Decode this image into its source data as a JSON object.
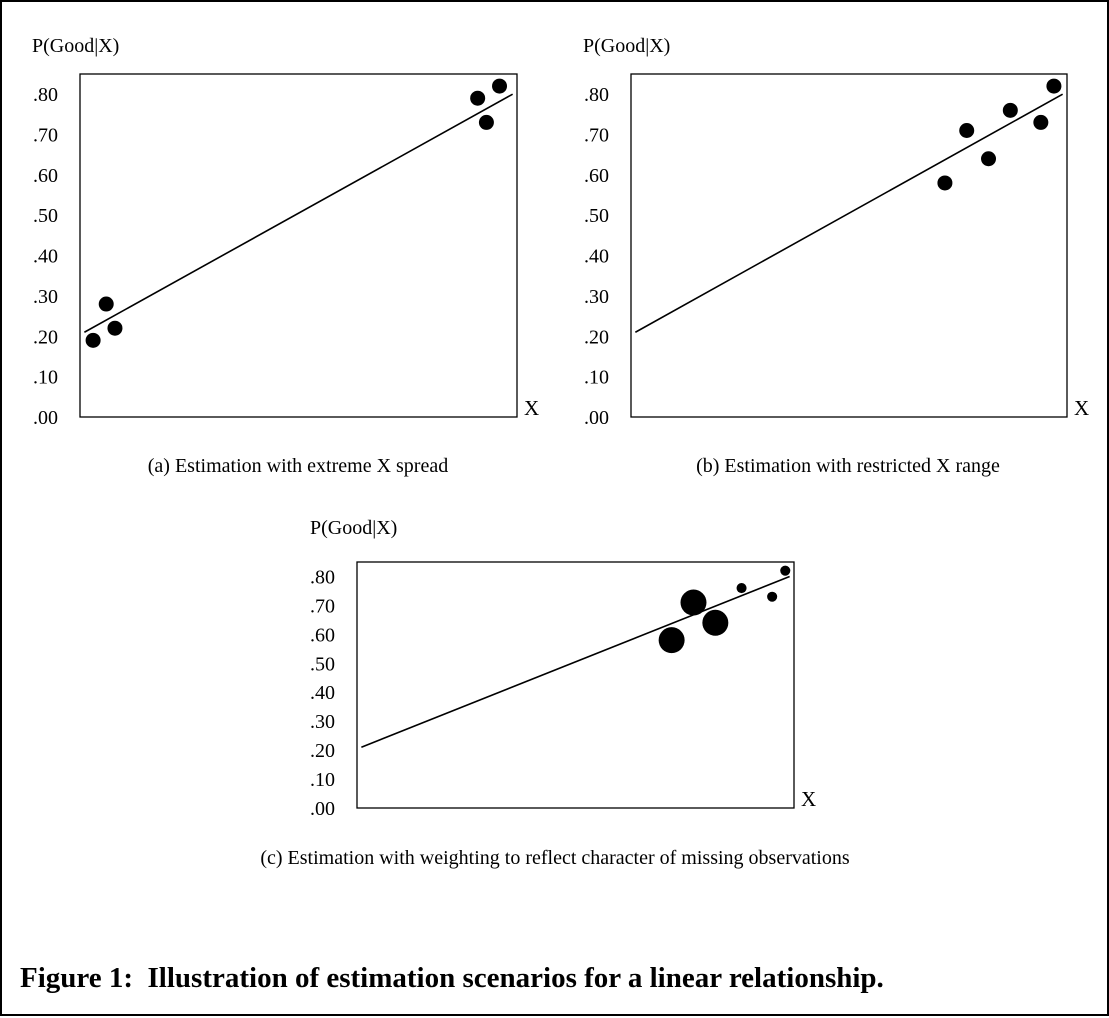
{
  "figure_caption": "Figure 1:  Illustration of estimation scenarios for a linear relationship.",
  "chart_data": [
    {
      "type": "scatter",
      "caption": "(a) Estimation with extreme X spread",
      "ylabel": "P(Good|X)",
      "xlabel": "X",
      "ylim": [
        0,
        0.85
      ],
      "xlim": [
        0,
        1
      ],
      "yticks": [
        ".00",
        ".10",
        ".20",
        ".30",
        ".40",
        ".50",
        ".60",
        ".70",
        ".80"
      ],
      "ytick_values": [
        0,
        0.1,
        0.2,
        0.3,
        0.4,
        0.5,
        0.6,
        0.7,
        0.8
      ],
      "grid": false,
      "fit_line": {
        "x": [
          0.01,
          0.99
        ],
        "y": [
          0.21,
          0.8
        ]
      },
      "points": [
        {
          "x": 0.03,
          "y": 0.19,
          "weight": 1
        },
        {
          "x": 0.06,
          "y": 0.28,
          "weight": 1
        },
        {
          "x": 0.08,
          "y": 0.22,
          "weight": 1
        },
        {
          "x": 0.91,
          "y": 0.79,
          "weight": 1
        },
        {
          "x": 0.93,
          "y": 0.73,
          "weight": 1
        },
        {
          "x": 0.96,
          "y": 0.82,
          "weight": 1
        }
      ]
    },
    {
      "type": "scatter",
      "caption": "(b) Estimation with restricted X range",
      "ylabel": "P(Good|X)",
      "xlabel": "X",
      "ylim": [
        0,
        0.85
      ],
      "xlim": [
        0,
        1
      ],
      "yticks": [
        ".00",
        ".10",
        ".20",
        ".30",
        ".40",
        ".50",
        ".60",
        ".70",
        ".80"
      ],
      "ytick_values": [
        0,
        0.1,
        0.2,
        0.3,
        0.4,
        0.5,
        0.6,
        0.7,
        0.8
      ],
      "grid": false,
      "fit_line": {
        "x": [
          0.01,
          0.99
        ],
        "y": [
          0.21,
          0.8
        ]
      },
      "points": [
        {
          "x": 0.72,
          "y": 0.58,
          "weight": 1
        },
        {
          "x": 0.77,
          "y": 0.71,
          "weight": 1
        },
        {
          "x": 0.82,
          "y": 0.64,
          "weight": 1
        },
        {
          "x": 0.87,
          "y": 0.76,
          "weight": 1
        },
        {
          "x": 0.94,
          "y": 0.73,
          "weight": 1
        },
        {
          "x": 0.97,
          "y": 0.82,
          "weight": 1
        }
      ]
    },
    {
      "type": "scatter",
      "caption": "(c) Estimation with weighting to reflect character of missing observations",
      "ylabel": "P(Good|X)",
      "xlabel": "X",
      "ylim": [
        0,
        0.85
      ],
      "xlim": [
        0,
        1
      ],
      "yticks": [
        ".00",
        ".10",
        ".20",
        ".30",
        ".40",
        ".50",
        ".60",
        ".70",
        ".80"
      ],
      "ytick_values": [
        0,
        0.1,
        0.2,
        0.3,
        0.4,
        0.5,
        0.6,
        0.7,
        0.8
      ],
      "grid": false,
      "fit_line": {
        "x": [
          0.01,
          0.99
        ],
        "y": [
          0.21,
          0.8
        ]
      },
      "points": [
        {
          "x": 0.72,
          "y": 0.58,
          "weight": 3
        },
        {
          "x": 0.77,
          "y": 0.71,
          "weight": 3
        },
        {
          "x": 0.82,
          "y": 0.64,
          "weight": 3
        },
        {
          "x": 0.88,
          "y": 0.76,
          "weight": 0.45
        },
        {
          "x": 0.95,
          "y": 0.73,
          "weight": 0.45
        },
        {
          "x": 0.98,
          "y": 0.82,
          "weight": 0.45
        }
      ]
    }
  ]
}
